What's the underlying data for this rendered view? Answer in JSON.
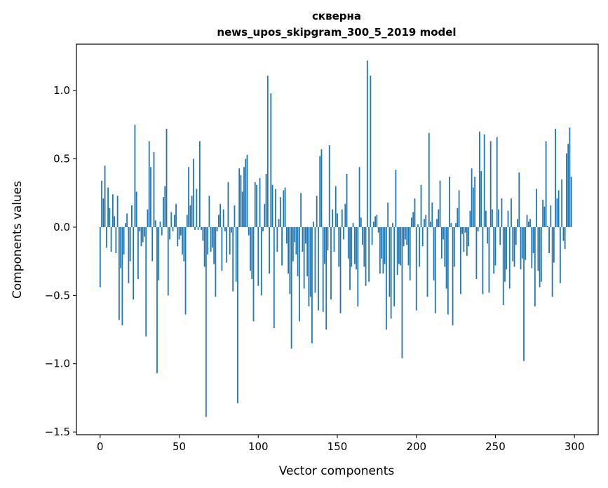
{
  "chart_data": {
    "type": "bar",
    "title_line1": "скверна",
    "title_line2": "news_upos_skipgram_300_5_2019 model",
    "xlabel": "Vector components",
    "ylabel": "Components values",
    "xlim": [
      -15,
      315
    ],
    "ylim": [
      -1.52,
      1.34
    ],
    "xticks": [
      0,
      50,
      100,
      150,
      200,
      250,
      300
    ],
    "xtick_labels": [
      "0",
      "50",
      "100",
      "150",
      "200",
      "250",
      "300"
    ],
    "yticks": [
      -1.5,
      -1.0,
      -0.5,
      0.0,
      0.5,
      1.0
    ],
    "ytick_labels": [
      "−1.5",
      "−1.0",
      "−0.5",
      "0.0",
      "0.5",
      "1.0"
    ],
    "bar_color": "#1f77b4",
    "grid": false,
    "values": [
      -0.44,
      0.34,
      0.21,
      0.45,
      -0.15,
      0.29,
      0.14,
      -0.18,
      0.24,
      0.08,
      -0.19,
      0.23,
      -0.68,
      -0.3,
      -0.72,
      -0.2,
      0.03,
      0.1,
      -0.41,
      -0.25,
      0.16,
      -0.53,
      0.75,
      0.26,
      -0.38,
      -0.03,
      -0.14,
      -0.11,
      -0.07,
      -0.8,
      0.13,
      0.63,
      0.44,
      -0.25,
      0.55,
      0.05,
      -1.07,
      -0.39,
      0.04,
      -0.06,
      0.22,
      0.3,
      0.72,
      -0.5,
      -0.09,
      0.11,
      -0.03,
      0.09,
      0.17,
      -0.14,
      -0.09,
      -0.06,
      -0.2,
      -0.25,
      -0.64,
      0.09,
      0.44,
      0.16,
      0.23,
      0.5,
      -0.02,
      0.28,
      -0.02,
      0.63,
      -0.02,
      -0.1,
      -0.29,
      -1.39,
      -0.2,
      0.23,
      -0.18,
      -0.15,
      -0.27,
      -0.51,
      -0.03,
      0.09,
      0.17,
      -0.32,
      0.13,
      -0.03,
      -0.26,
      0.33,
      -0.2,
      -0.04,
      -0.47,
      0.16,
      -0.4,
      -1.29,
      0.43,
      0.38,
      0.26,
      0.44,
      0.5,
      0.53,
      -0.06,
      -0.32,
      -0.38,
      -0.69,
      0.33,
      0.31,
      -0.43,
      0.36,
      -0.5,
      -0.03,
      0.17,
      0.39,
      1.11,
      -0.34,
      0.98,
      0.31,
      -0.74,
      0.28,
      -0.18,
      0.06,
      0.22,
      -0.28,
      0.27,
      0.29,
      -0.12,
      -0.34,
      -0.49,
      -0.89,
      -0.25,
      -0.11,
      -0.2,
      -0.36,
      -0.69,
      0.25,
      -0.18,
      -0.45,
      -0.12,
      -0.36,
      -0.58,
      -0.51,
      -0.85,
      0.04,
      -0.48,
      0.23,
      -0.61,
      0.52,
      0.57,
      -0.62,
      -0.27,
      -0.75,
      -0.17,
      0.6,
      -0.53,
      0.13,
      -0.18,
      0.3,
      0.1,
      -0.29,
      -0.63,
      0.13,
      -0.09,
      0.17,
      0.39,
      -0.23,
      -0.46,
      -0.29,
      0.03,
      -0.27,
      -0.31,
      -0.58,
      0.44,
      0.07,
      -0.13,
      -0.29,
      -0.43,
      1.22,
      -0.4,
      1.11,
      -0.13,
      0.04,
      0.08,
      0.09,
      -0.04,
      -0.34,
      -0.23,
      -0.34,
      -0.27,
      -0.75,
      0.18,
      -0.51,
      -0.67,
      0.03,
      -0.58,
      0.42,
      -0.35,
      -0.27,
      -0.28,
      -0.96,
      -0.14,
      -0.09,
      -0.13,
      -0.28,
      -0.39,
      0.07,
      0.11,
      0.21,
      -0.61,
      0.02,
      -0.29,
      0.31,
      -0.14,
      0.06,
      0.09,
      -0.51,
      0.69,
      0.04,
      0.18,
      -0.39,
      -0.63,
      0.06,
      0.13,
      0.34,
      -0.23,
      -0.09,
      -0.29,
      -0.45,
      -0.64,
      0.37,
      0.03,
      -0.72,
      -0.29,
      0.03,
      0.14,
      0.27,
      -0.49,
      -0.05,
      -0.18,
      -0.04,
      -0.21,
      -0.14,
      0.12,
      0.43,
      0.29,
      0.37,
      -0.38,
      -0.03,
      0.7,
      0.41,
      -0.49,
      0.68,
      0.12,
      -0.12,
      -0.48,
      0.63,
      0.13,
      -0.34,
      -0.28,
      0.66,
      0.13,
      -0.13,
      0.21,
      -0.57,
      -0.4,
      -0.31,
      0.12,
      -0.45,
      0.21,
      -0.25,
      -0.29,
      -0.13,
      0.06,
      0.4,
      -0.31,
      -0.23,
      -0.98,
      -0.24,
      0.09,
      0.04,
      0.06,
      -0.3,
      -0.19,
      -0.58,
      0.28,
      -0.32,
      -0.44,
      -0.4,
      0.2,
      0.15,
      0.63,
      0.01,
      -0.19,
      0.16,
      -0.51,
      -0.26,
      0.72,
      0.21,
      0.27,
      -0.41,
      0.35,
      -0.1,
      -0.16,
      0.54,
      0.61,
      0.73,
      0.37
    ]
  }
}
